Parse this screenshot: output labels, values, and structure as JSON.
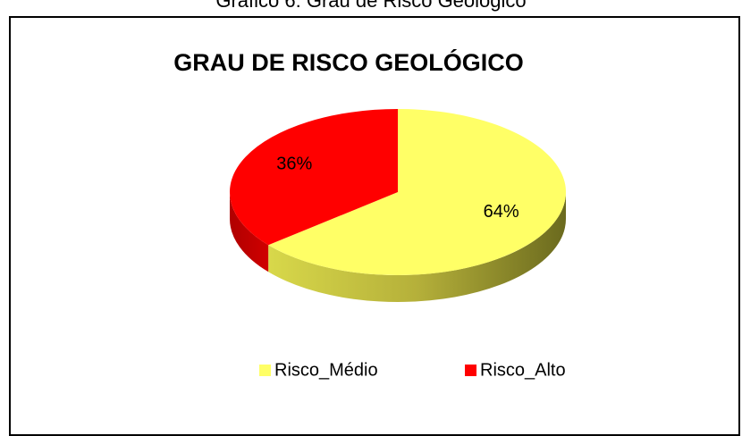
{
  "caption": "Gráfico 6: Grau de Risco Geológico",
  "chart_data": {
    "type": "pie",
    "title": "GRAU DE RISCO GEOLÓGICO",
    "categories": [
      "Risco_Médio",
      "Risco_Alto"
    ],
    "values": [
      64,
      36
    ],
    "value_labels": [
      "64%",
      "36%"
    ],
    "colors": [
      "#ffff66",
      "#ff0000"
    ],
    "legend": "bottom"
  }
}
